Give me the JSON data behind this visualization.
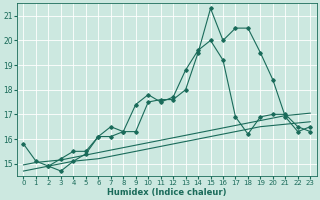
{
  "xlabel": "Humidex (Indice chaleur)",
  "xlim": [
    -0.5,
    23.5
  ],
  "ylim": [
    14.5,
    21.5
  ],
  "yticks": [
    15,
    16,
    17,
    18,
    19,
    20,
    21
  ],
  "xticks": [
    0,
    1,
    2,
    3,
    4,
    5,
    6,
    7,
    8,
    9,
    10,
    11,
    12,
    13,
    14,
    15,
    16,
    17,
    18,
    19,
    20,
    21,
    22,
    23
  ],
  "bg_color": "#cce8e0",
  "grid_color": "#aad4cc",
  "line_color": "#1a6b5a",
  "line1_x": [
    0,
    1,
    2,
    3,
    4,
    5,
    6,
    7,
    8,
    9,
    10,
    11,
    12,
    13,
    14,
    15,
    16,
    17,
    18,
    19,
    20,
    21,
    22,
    23
  ],
  "line1_y": [
    15.8,
    15.1,
    14.9,
    14.7,
    15.1,
    15.4,
    16.1,
    16.1,
    16.3,
    16.3,
    17.5,
    17.6,
    17.6,
    18.0,
    19.5,
    21.3,
    20.0,
    20.5,
    20.5,
    19.5,
    18.4,
    16.9,
    16.3,
    16.5
  ],
  "line2_x": [
    0,
    1,
    2,
    3,
    4,
    5,
    6,
    7,
    8,
    9,
    10,
    11,
    12,
    13,
    14,
    15,
    16,
    17,
    18,
    19,
    20,
    21,
    22,
    23
  ],
  "line2_y": [
    14.95,
    15.05,
    15.1,
    15.15,
    15.25,
    15.35,
    15.45,
    15.55,
    15.65,
    15.75,
    15.85,
    15.95,
    16.05,
    16.15,
    16.25,
    16.35,
    16.45,
    16.55,
    16.65,
    16.75,
    16.85,
    16.95,
    17.0,
    17.05
  ],
  "line3_x": [
    0,
    1,
    2,
    3,
    4,
    5,
    6,
    7,
    8,
    9,
    10,
    11,
    12,
    13,
    14,
    15,
    16,
    17,
    18,
    19,
    20,
    21,
    22,
    23
  ],
  "line3_y": [
    14.7,
    14.8,
    14.9,
    15.0,
    15.1,
    15.15,
    15.2,
    15.3,
    15.4,
    15.5,
    15.6,
    15.7,
    15.8,
    15.9,
    16.0,
    16.1,
    16.2,
    16.3,
    16.4,
    16.5,
    16.55,
    16.6,
    16.65,
    16.7
  ],
  "line4_x": [
    2,
    3,
    4,
    5,
    6,
    7,
    8,
    9,
    10,
    11,
    12,
    13,
    14,
    15,
    16,
    17,
    18,
    19,
    20,
    21,
    22,
    23
  ],
  "line4_y": [
    14.9,
    15.2,
    15.5,
    15.5,
    16.1,
    16.5,
    16.3,
    17.4,
    17.8,
    17.5,
    17.7,
    18.8,
    19.6,
    20.0,
    19.2,
    16.9,
    16.2,
    16.9,
    17.0,
    17.0,
    16.5,
    16.3
  ]
}
